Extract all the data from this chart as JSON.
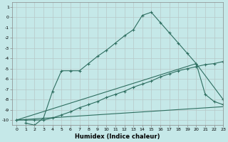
{
  "xlabel": "Humidex (Indice chaleur)",
  "bg_color": "#c5e8e8",
  "grid_color": "#dcdcdc",
  "line_color": "#2e6e60",
  "xlim": [
    -0.5,
    23
  ],
  "ylim": [
    -10.5,
    1.5
  ],
  "yticks": [
    1,
    0,
    -1,
    -2,
    -3,
    -4,
    -5,
    -6,
    -7,
    -8,
    -9,
    -10
  ],
  "xticks": [
    0,
    1,
    2,
    3,
    4,
    5,
    6,
    7,
    8,
    9,
    10,
    11,
    12,
    13,
    14,
    15,
    16,
    17,
    18,
    19,
    20,
    21,
    22,
    23
  ],
  "line1_x": [
    1,
    2,
    3,
    4,
    5,
    6,
    7,
    8,
    9,
    10,
    11,
    12,
    13,
    14,
    15,
    16,
    17,
    18,
    19,
    20,
    21,
    22,
    23
  ],
  "line1_y": [
    -10.3,
    -10.5,
    -9.8,
    -7.2,
    -5.2,
    -5.2,
    -5.2,
    -4.5,
    -3.8,
    -3.2,
    -2.5,
    -1.8,
    -1.2,
    0.2,
    0.5,
    -0.5,
    -1.5,
    -2.5,
    -3.5,
    -4.5,
    -7.5,
    -8.2,
    -8.5
  ],
  "line2_x": [
    0,
    1,
    2,
    3,
    4,
    5,
    6,
    7,
    8,
    9,
    10,
    11,
    12,
    13,
    14,
    15,
    16,
    17,
    18,
    19,
    20,
    21,
    22,
    23
  ],
  "line2_y": [
    -10.0,
    -10.0,
    -10.0,
    -10.0,
    -9.8,
    -9.5,
    -9.2,
    -8.8,
    -8.5,
    -8.2,
    -7.8,
    -7.5,
    -7.2,
    -6.8,
    -6.5,
    -6.2,
    -5.8,
    -5.5,
    -5.2,
    -5.0,
    -4.8,
    -4.6,
    -4.5,
    -4.3
  ],
  "line3_x": [
    0,
    23
  ],
  "line3_y": [
    -10.0,
    -8.7
  ],
  "line4_x": [
    0,
    20,
    23
  ],
  "line4_y": [
    -10.0,
    -4.5,
    -8.0
  ]
}
